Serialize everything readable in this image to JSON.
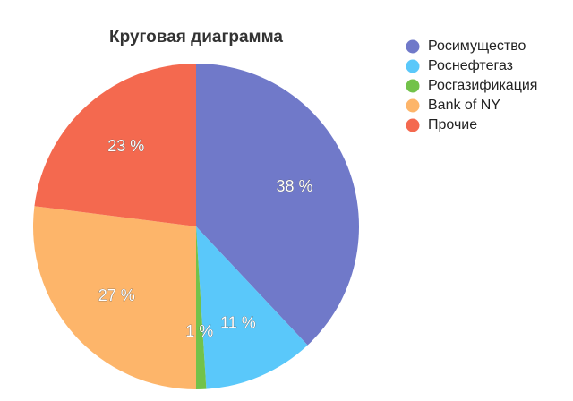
{
  "chart_data": {
    "type": "pie",
    "title": "Круговая диаграмма",
    "categories": [
      "Росимущество",
      "Роснефтегаз",
      "Росгазификация",
      "Bank of NY",
      "Прочие"
    ],
    "values": [
      38,
      11,
      1,
      27,
      23
    ],
    "value_labels": [
      "38 %",
      "11 %",
      "1 %",
      "27 %",
      "23 %"
    ],
    "colors": [
      "#7079c9",
      "#5ac8fa",
      "#72c24a",
      "#fdb56a",
      "#f4694f"
    ],
    "legend": "right"
  }
}
